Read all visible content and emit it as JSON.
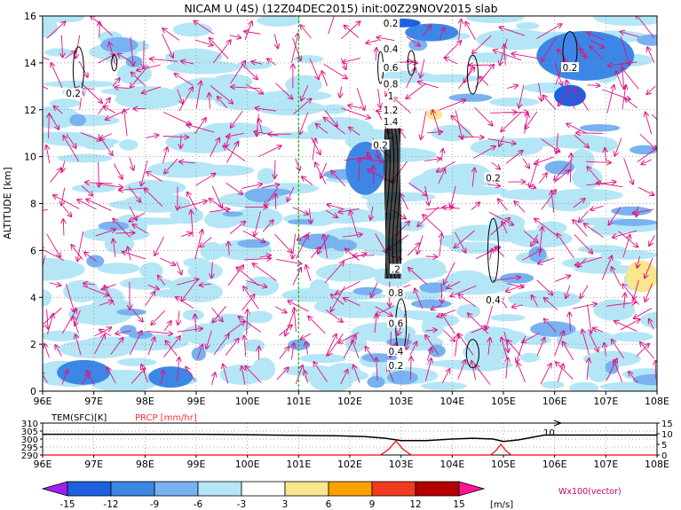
{
  "title": "NICAM U (4S) (12Z04DEC2015) init:00Z29NOV2015 slab",
  "chart_data": [
    {
      "type": "heatmap",
      "title": "NICAM U (4S) (12Z04DEC2015) init:00Z29NOV2015 slab",
      "xlabel": "",
      "ylabel": "ALTITUDE [km]",
      "x_ticks": [
        "96E",
        "97E",
        "98E",
        "99E",
        "100E",
        "101E",
        "102E",
        "103E",
        "104E",
        "105E",
        "106E",
        "107E",
        "108E"
      ],
      "x_range": [
        96,
        108
      ],
      "y_ticks": [
        "0",
        "2",
        "4",
        "6",
        "8",
        "10",
        "12",
        "14",
        "16"
      ],
      "y_range": [
        0,
        16
      ],
      "grid": "dotted",
      "marker_longitude": 101,
      "contour_labels": [
        {
          "text": "0.2",
          "x": 96.6,
          "y": 12.7
        },
        {
          "text": "0.2",
          "x": 106.3,
          "y": 13.8
        },
        {
          "text": "0.2",
          "x": 102.8,
          "y": 15.7
        },
        {
          "text": "0.4",
          "x": 102.8,
          "y": 14.6
        },
        {
          "text": "0.6",
          "x": 102.8,
          "y": 13.8
        },
        {
          "text": "0.8",
          "x": 102.8,
          "y": 13.1
        },
        {
          "text": "1",
          "x": 102.8,
          "y": 12.6
        },
        {
          "text": "1.2",
          "x": 102.8,
          "y": 12.0
        },
        {
          "text": "1.4",
          "x": 102.8,
          "y": 11.5
        },
        {
          "text": "0.2",
          "x": 102.6,
          "y": 10.5
        },
        {
          "text": "0.2",
          "x": 104.8,
          "y": 9.1
        },
        {
          "text": ".2",
          "x": 102.9,
          "y": 5.2
        },
        {
          "text": "0.8",
          "x": 102.9,
          "y": 4.2
        },
        {
          "text": "0.4",
          "x": 104.8,
          "y": 3.9
        },
        {
          "text": "0.6",
          "x": 102.9,
          "y": 2.9
        },
        {
          "text": "0.4",
          "x": 102.9,
          "y": 1.7
        },
        {
          "text": "0.2",
          "x": 102.9,
          "y": 1.1
        }
      ]
    },
    {
      "type": "line",
      "title": "",
      "x_ticks": [
        "96E",
        "97E",
        "98E",
        "99E",
        "100E",
        "101E",
        "102E",
        "103E",
        "104E",
        "105E",
        "106E",
        "107E",
        "108E"
      ],
      "x_range": [
        96,
        108
      ],
      "series": [
        {
          "name": "TEM(SFC)[K]",
          "color": "#000000",
          "y_ticks": [
            "290",
            "295",
            "300",
            "305",
            "310"
          ],
          "ylim": [
            290,
            310
          ],
          "x": [
            96.0,
            97.0,
            98.0,
            99.0,
            100.0,
            101.0,
            101.8,
            102.3,
            102.7,
            103.0,
            103.5,
            104.0,
            104.4,
            104.8,
            105.0,
            105.3,
            105.8,
            106.2,
            107.0,
            108.0
          ],
          "values": [
            303,
            303,
            303,
            303,
            302.7,
            302.3,
            302,
            301.5,
            300.5,
            299,
            299,
            300,
            300.5,
            300,
            298.5,
            299.5,
            302.5,
            302.5,
            302.5,
            302.5
          ]
        },
        {
          "name": "PRCP [mm/hr]",
          "color": "#ff0000",
          "y_ticks": [
            "0",
            "5",
            "10",
            "15"
          ],
          "ylim": [
            0,
            15
          ],
          "x": [
            96.0,
            102.6,
            102.75,
            102.9,
            103.05,
            103.2,
            104.75,
            104.85,
            104.95,
            105.05,
            105.15,
            108.0
          ],
          "values": [
            0,
            0,
            2.5,
            6.5,
            2.5,
            0,
            0,
            2,
            5,
            2,
            0,
            0
          ]
        }
      ],
      "annotation": "10"
    }
  ],
  "colorbar": {
    "labels": [
      "-15",
      "-12",
      "-9",
      "-6",
      "-3",
      "3",
      "6",
      "9",
      "12",
      "15"
    ],
    "colors": [
      "#a020f0",
      "#1e60e0",
      "#3c87e6",
      "#78b2f0",
      "#b4e6f6",
      "#ffffff",
      "#fae68c",
      "#ffa000",
      "#f03c1e",
      "#b40000",
      "#ff1493"
    ],
    "unit": "[m/s]",
    "vector_label": "Wx100(vector)"
  }
}
